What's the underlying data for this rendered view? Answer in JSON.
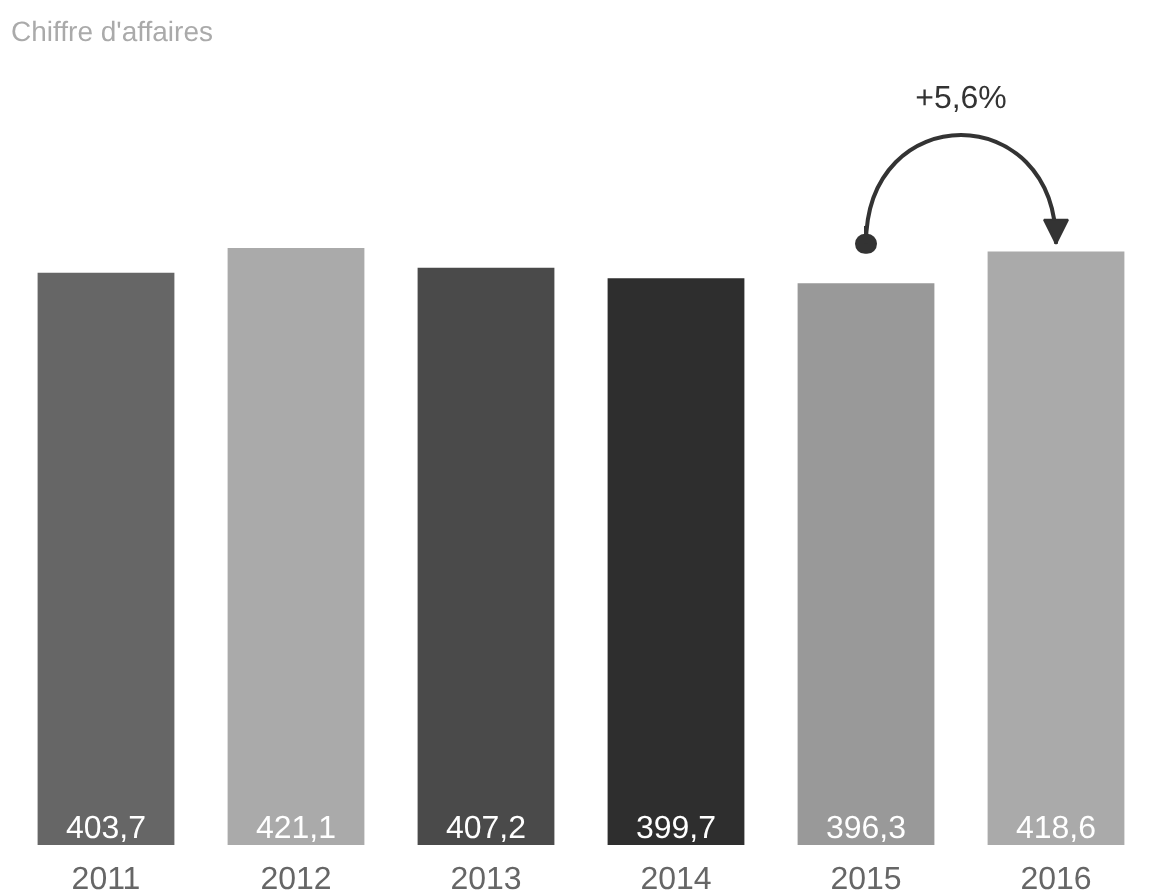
{
  "chart_data": {
    "type": "bar",
    "title": "Chiffre d'affaires",
    "categories": [
      "2011",
      "2012",
      "2013",
      "2014",
      "2015",
      "2016"
    ],
    "values": [
      403.7,
      421.1,
      407.2,
      399.7,
      396.3,
      418.6
    ],
    "colors": [
      "#666666",
      "#aaaaaa",
      "#4a4a4a",
      "#2e2e2e",
      "#999999",
      "#aaaaaa"
    ],
    "value_labels": [
      "403,7",
      "421,1",
      "407,2",
      "399,7",
      "396,3",
      "418,6"
    ],
    "annotations": [
      "+5,6%"
    ],
    "grid": false
  }
}
